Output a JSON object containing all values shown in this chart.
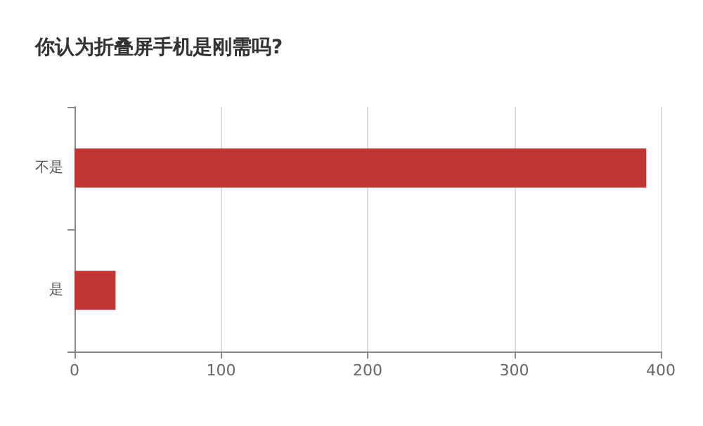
{
  "chart_data": {
    "type": "bar",
    "orientation": "horizontal",
    "title": "你认为折叠屏手机是刚需吗?",
    "categories": [
      "不是",
      "是"
    ],
    "values": [
      390,
      28
    ],
    "color": "#c23531",
    "xlim": [
      0,
      400
    ],
    "xticks": [
      0,
      100,
      200,
      300,
      400
    ],
    "grid": "x"
  }
}
